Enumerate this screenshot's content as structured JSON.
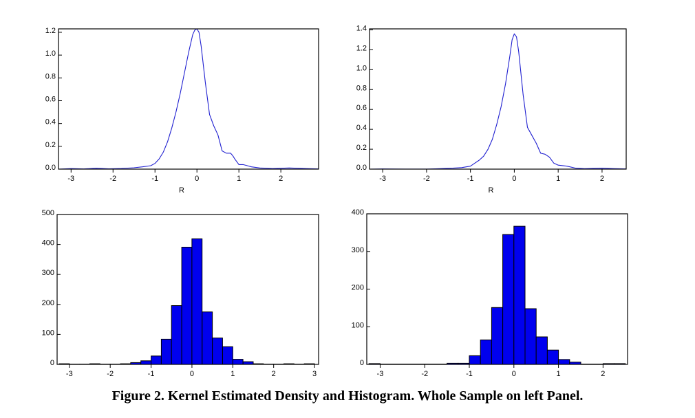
{
  "caption": "Figure 2. Kernel Estimated Density and Histogram. Whole Sample on left Panel.",
  "colors": {
    "density": "#1f1fd0",
    "bar_fill": "#0000ee",
    "bar_edge": "#000000"
  },
  "chart_data": [
    {
      "id": "density-left",
      "type": "line",
      "title": "",
      "xlabel": "R",
      "ylabel": "",
      "xlim": [
        -3.3,
        2.9
      ],
      "ylim": [
        0,
        1.23
      ],
      "xticks": [
        -3,
        -2,
        -1,
        0,
        1,
        2
      ],
      "yticks": [
        0.0,
        0.2,
        0.4,
        0.6,
        0.8,
        1.0,
        1.2
      ],
      "ytick_labels": [
        "0.0",
        "0.2",
        "0.4",
        "0.6",
        "0.8",
        "1.0",
        "1.2"
      ],
      "series": [
        {
          "name": "density",
          "x": [
            -3.3,
            -3.0,
            -2.7,
            -2.4,
            -2.1,
            -1.8,
            -1.5,
            -1.3,
            -1.1,
            -1.0,
            -0.9,
            -0.8,
            -0.7,
            -0.6,
            -0.5,
            -0.4,
            -0.3,
            -0.2,
            -0.1,
            -0.05,
            0.0,
            0.05,
            0.1,
            0.2,
            0.3,
            0.4,
            0.5,
            0.6,
            0.7,
            0.8,
            0.85,
            0.9,
            1.0,
            1.1,
            1.2,
            1.3,
            1.5,
            1.8,
            2.2,
            2.6,
            2.9
          ],
          "y": [
            0.0,
            0.005,
            0.002,
            0.008,
            0.003,
            0.006,
            0.012,
            0.02,
            0.03,
            0.05,
            0.09,
            0.15,
            0.24,
            0.36,
            0.5,
            0.66,
            0.84,
            1.02,
            1.18,
            1.22,
            1.23,
            1.2,
            1.08,
            0.76,
            0.48,
            0.38,
            0.3,
            0.16,
            0.14,
            0.14,
            0.12,
            0.09,
            0.04,
            0.04,
            0.03,
            0.02,
            0.01,
            0.005,
            0.01,
            0.005,
            0.002
          ]
        }
      ]
    },
    {
      "id": "density-right",
      "type": "line",
      "title": "",
      "xlabel": "R",
      "ylabel": "",
      "xlim": [
        -3.3,
        2.55
      ],
      "ylim": [
        0,
        1.41
      ],
      "xticks": [
        -3,
        -2,
        -1,
        0,
        1,
        2
      ],
      "yticks": [
        0.0,
        0.2,
        0.4,
        0.6,
        0.8,
        1.0,
        1.2,
        1.4
      ],
      "ytick_labels": [
        "0.0",
        "0.2",
        "0.4",
        "0.6",
        "0.8",
        "1.0",
        "1.2",
        "1.4"
      ],
      "series": [
        {
          "name": "density",
          "x": [
            -3.3,
            -3.0,
            -2.5,
            -2.0,
            -1.7,
            -1.4,
            -1.2,
            -1.0,
            -0.9,
            -0.8,
            -0.7,
            -0.6,
            -0.5,
            -0.4,
            -0.3,
            -0.2,
            -0.1,
            -0.05,
            0.0,
            0.05,
            0.1,
            0.2,
            0.3,
            0.4,
            0.5,
            0.6,
            0.7,
            0.8,
            0.9,
            1.0,
            1.2,
            1.4,
            1.6,
            2.0,
            2.3,
            2.55
          ],
          "y": [
            0.0,
            0.002,
            0.001,
            0.001,
            0.005,
            0.01,
            0.015,
            0.03,
            0.06,
            0.09,
            0.13,
            0.2,
            0.3,
            0.45,
            0.63,
            0.86,
            1.14,
            1.3,
            1.36,
            1.33,
            1.18,
            0.75,
            0.42,
            0.34,
            0.26,
            0.16,
            0.15,
            0.12,
            0.06,
            0.04,
            0.03,
            0.01,
            0.005,
            0.01,
            0.005,
            0.002
          ]
        }
      ]
    },
    {
      "id": "hist-left",
      "type": "bar",
      "title": "",
      "xlabel": "",
      "ylabel": "",
      "xlim": [
        -3.3,
        3.1
      ],
      "ylim": [
        0,
        500
      ],
      "xticks": [
        -3,
        -2,
        -1,
        0,
        1,
        2,
        3
      ],
      "yticks": [
        0,
        100,
        200,
        300,
        400,
        500
      ],
      "ytick_labels": [
        "0",
        "100",
        "200",
        "300",
        "400",
        "500"
      ],
      "bin_width": 0.25,
      "bin_starts": [
        -3.25,
        -3.0,
        -2.75,
        -2.5,
        -2.25,
        -2.0,
        -1.75,
        -1.5,
        -1.25,
        -1.0,
        -0.75,
        -0.5,
        -0.25,
        0.0,
        0.25,
        0.5,
        0.75,
        1.0,
        1.25,
        1.5,
        1.75,
        2.0,
        2.25,
        2.5,
        2.75
      ],
      "values": [
        2,
        1,
        1,
        2,
        1,
        1,
        2,
        6,
        12,
        28,
        84,
        196,
        391,
        419,
        175,
        88,
        59,
        17,
        9,
        2,
        1,
        1,
        2,
        1,
        2
      ]
    },
    {
      "id": "hist-right",
      "type": "bar",
      "title": "",
      "xlabel": "",
      "ylabel": "",
      "xlim": [
        -3.3,
        2.55
      ],
      "ylim": [
        0,
        400
      ],
      "xticks": [
        -3,
        -2,
        -1,
        0,
        1,
        2
      ],
      "yticks": [
        0,
        100,
        200,
        300,
        400
      ],
      "ytick_labels": [
        "0",
        "100",
        "200",
        "300",
        "400"
      ],
      "bin_width": 0.25,
      "bin_starts": [
        -3.25,
        -3.0,
        -2.75,
        -2.5,
        -2.25,
        -2.0,
        -1.75,
        -1.5,
        -1.25,
        -1.0,
        -0.75,
        -0.5,
        -0.25,
        0.0,
        0.25,
        0.5,
        0.75,
        1.0,
        1.25,
        1.5,
        1.75,
        2.0,
        2.25
      ],
      "values": [
        2,
        1,
        1,
        1,
        1,
        1,
        1,
        3,
        3,
        23,
        65,
        151,
        345,
        367,
        148,
        73,
        38,
        13,
        6,
        1,
        1,
        2,
        2
      ]
    }
  ]
}
